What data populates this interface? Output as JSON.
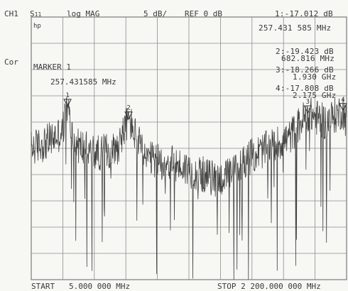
{
  "header": {
    "channel": "CH1",
    "param_main": "S",
    "param_sub": "11",
    "format": "log MAG",
    "scale": "5 dB/",
    "ref": "REF 0 dB"
  },
  "active_marker": {
    "readout": "1:-17.012 dB",
    "freq": "257.431 585 MHz"
  },
  "marker_list": [
    {
      "id": "2",
      "value": "2:-19.423 dB",
      "freq": "682.816 MHz"
    },
    {
      "id": "3",
      "value": "3:-18.266 dB",
      "freq": "1.930 GHz"
    },
    {
      "id": "4",
      "value": "4:-17.808 dB",
      "freq": "2.175 GHz"
    }
  ],
  "side": {
    "cor": "Cor",
    "hp": "hp"
  },
  "marker_box": {
    "title": "MARKER 1",
    "freq": "257.431585 MHz"
  },
  "footer": {
    "start": "START   5.000 000 MHz",
    "stop": "STOP 2 200.000 000 MHz"
  },
  "chart_data": {
    "type": "line",
    "x_unit": "MHz",
    "y_unit": "dB",
    "xlim": [
      5,
      2200
    ],
    "ylim": [
      -50,
      0
    ],
    "ref_level": 0,
    "scale_per_div": 5,
    "grid": true,
    "grid_divisions_x": 10,
    "grid_divisions_y": 10,
    "trace_color": "#444444",
    "trace_profile": [
      [
        5,
        -25
      ],
      [
        100,
        -24
      ],
      [
        220,
        -22
      ],
      [
        257.43,
        -17.0
      ],
      [
        300,
        -24
      ],
      [
        450,
        -26
      ],
      [
        600,
        -25
      ],
      [
        682.8,
        -19.4
      ],
      [
        800,
        -27
      ],
      [
        1000,
        -28
      ],
      [
        1200,
        -30
      ],
      [
        1300,
        -31
      ],
      [
        1400,
        -30
      ],
      [
        1500,
        -27
      ],
      [
        1650,
        -25
      ],
      [
        1800,
        -23
      ],
      [
        1930,
        -18.3
      ],
      [
        2050,
        -20
      ],
      [
        2175,
        -17.8
      ],
      [
        2200,
        -20
      ]
    ],
    "markers": [
      {
        "label": "1",
        "x": 257.431585,
        "y": -17.012
      },
      {
        "label": "2",
        "x": 682.816,
        "y": -19.423
      },
      {
        "label": "3",
        "x": 1930,
        "y": -18.266
      },
      {
        "label": "4",
        "x": 2175,
        "y": -17.808
      }
    ]
  }
}
